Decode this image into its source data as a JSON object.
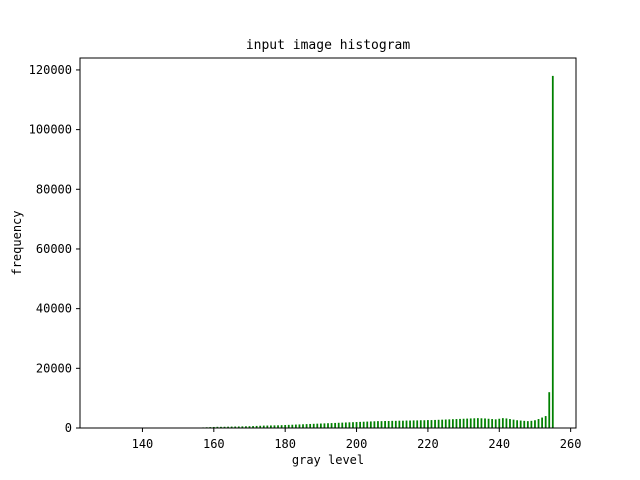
{
  "chart_data": {
    "type": "bar",
    "title": "input image histogram",
    "xlabel": "gray level",
    "ylabel": "frequency",
    "xlim": [
      122.5,
      261.5
    ],
    "ylim": [
      0,
      124000
    ],
    "xticks": [
      "140",
      "160",
      "180",
      "200",
      "220",
      "240",
      "260"
    ],
    "yticks": [
      "0",
      "20000",
      "40000",
      "60000",
      "80000",
      "100000",
      "120000"
    ],
    "bar_color": "#008000",
    "grid": false,
    "series": [
      {
        "x": [
          156,
          157,
          158,
          159,
          160,
          161,
          162,
          163,
          164,
          165,
          166,
          167,
          168,
          169,
          170,
          171,
          172,
          173,
          174,
          175,
          176,
          177,
          178,
          179,
          180,
          181,
          182,
          183,
          184,
          185,
          186,
          187,
          188,
          189,
          190,
          191,
          192,
          193,
          194,
          195,
          196,
          197,
          198,
          199,
          200,
          201,
          202,
          203,
          204,
          205,
          206,
          207,
          208,
          209,
          210,
          211,
          212,
          213,
          214,
          215,
          216,
          217,
          218,
          219,
          220,
          221,
          222,
          223,
          224,
          225,
          226,
          227,
          228,
          229,
          230,
          231,
          232,
          233,
          234,
          235,
          236,
          237,
          238,
          239,
          240,
          241,
          242,
          243,
          244,
          245,
          246,
          247,
          248,
          249,
          250,
          251,
          252,
          253,
          254,
          255
        ],
        "values": [
          150,
          200,
          250,
          300,
          350,
          400,
          400,
          420,
          450,
          480,
          500,
          520,
          550,
          580,
          600,
          650,
          700,
          750,
          800,
          820,
          850,
          880,
          900,
          950,
          1000,
          1050,
          1100,
          1150,
          1200,
          1250,
          1300,
          1350,
          1400,
          1450,
          1500,
          1550,
          1600,
          1650,
          1700,
          1750,
          1800,
          1850,
          1900,
          1950,
          2000,
          2050,
          2100,
          2150,
          2200,
          2250,
          2300,
          2300,
          2350,
          2350,
          2400,
          2400,
          2450,
          2450,
          2500,
          2500,
          2550,
          2550,
          2600,
          2600,
          2650,
          2650,
          2700,
          2750,
          2800,
          2850,
          2900,
          2950,
          3000,
          3050,
          3100,
          3150,
          3200,
          3250,
          3300,
          3250,
          3200,
          3100,
          3000,
          2900,
          3100,
          3300,
          3200,
          3000,
          2800,
          2600,
          2500,
          2400,
          2300,
          2400,
          2600,
          3000,
          3500,
          4000,
          12000,
          118000
        ]
      }
    ]
  }
}
